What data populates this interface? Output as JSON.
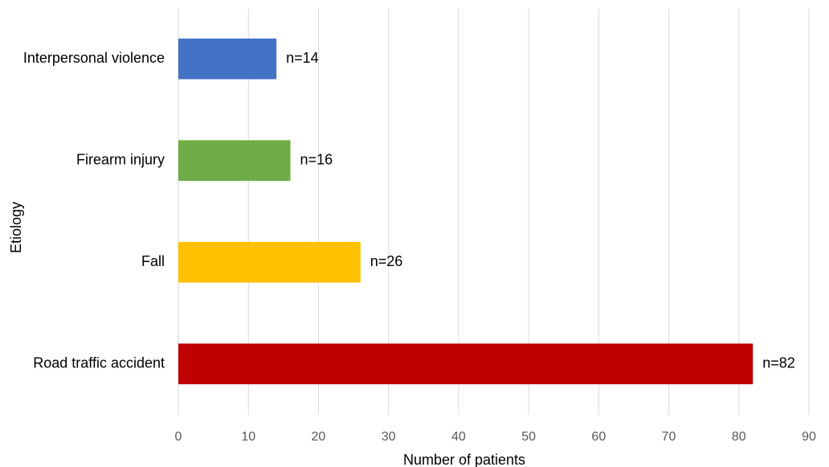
{
  "chart_data": {
    "type": "bar",
    "orientation": "horizontal",
    "categories": [
      "Interpersonal violence",
      "Firearm injury",
      "Fall",
      "Road traffic accident"
    ],
    "values": [
      14,
      16,
      26,
      82
    ],
    "data_labels": [
      "n=14",
      "n=16",
      "n=26",
      "n=82"
    ],
    "colors": [
      "#4472c4",
      "#70ad47",
      "#ffc000",
      "#c00000"
    ],
    "xlabel": "Number of patients",
    "ylabel": "Etiology",
    "xlim": [
      0,
      90
    ],
    "xticks": [
      0,
      10,
      20,
      30,
      40,
      50,
      60,
      70,
      80,
      90
    ],
    "grid": "vertical",
    "legend": "none"
  }
}
